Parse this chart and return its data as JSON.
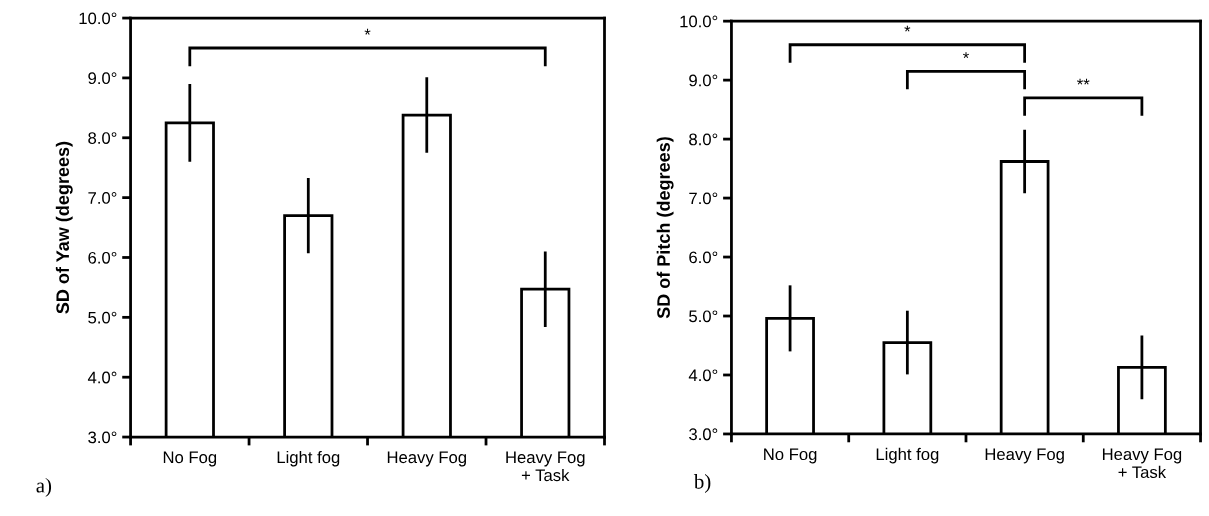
{
  "chart_data": [
    {
      "type": "bar",
      "ylabel": "SD of Yaw (degrees)",
      "categories": [
        "No Fog",
        "Light fog",
        "Heavy Fog",
        "Heavy Fog\n+ Task"
      ],
      "values": [
        8.25,
        6.7,
        8.38,
        5.47
      ],
      "errors": [
        0.65,
        0.63,
        0.63,
        0.63
      ],
      "color": "#ffffff",
      "ylim": [
        3,
        10
      ],
      "yticks": [
        {
          "value": 3,
          "label": "3.0°"
        },
        {
          "value": 4,
          "label": "4.0°"
        },
        {
          "value": 5,
          "label": "5.0°"
        },
        {
          "value": 6,
          "label": "6.0°"
        },
        {
          "value": 7,
          "label": "7.0°"
        },
        {
          "value": 8,
          "label": "8.0°"
        },
        {
          "value": 9,
          "label": "9.0°"
        },
        {
          "value": 10,
          "label": "10.0°"
        }
      ],
      "grid": false,
      "legend": false,
      "annotations": [
        "*",
        "a)"
      ]
    },
    {
      "type": "bar",
      "ylabel": "SD of Pitch (degrees)",
      "categories": [
        "No Fog",
        "Light fog",
        "Heavy Fog",
        "Heavy Fog\n+ Task"
      ],
      "values": [
        4.96,
        4.55,
        7.62,
        4.13
      ],
      "errors": [
        0.56,
        0.54,
        0.54,
        0.54
      ],
      "color": "#ffffff",
      "ylim": [
        3,
        10
      ],
      "yticks": [
        {
          "value": 3,
          "label": "3.0°"
        },
        {
          "value": 4,
          "label": "4.0°"
        },
        {
          "value": 5,
          "label": "5.0°"
        },
        {
          "value": 6,
          "label": "6.0°"
        },
        {
          "value": 7,
          "label": "7.0°"
        },
        {
          "value": 8,
          "label": "8.0°"
        },
        {
          "value": 9,
          "label": "9.0°"
        },
        {
          "value": 10,
          "label": "10.0°"
        }
      ],
      "grid": false,
      "legend": false,
      "annotations": [
        "*",
        "*",
        "**",
        "b)"
      ]
    }
  ]
}
